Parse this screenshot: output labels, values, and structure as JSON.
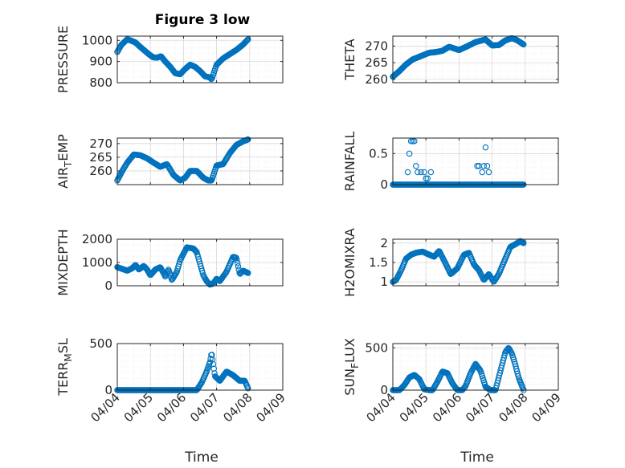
{
  "colors": {
    "marker": "#0072BD",
    "axis": "#262626",
    "grid": "#d9d9d9",
    "minor_grid": "#ececec"
  },
  "chart_data": [
    {
      "type": "scatter",
      "id": "pressure",
      "title": "Figure 3 low",
      "ylabel": "PRESSURE",
      "xlabel": "",
      "xlim": [
        0,
        5
      ],
      "ylim": [
        800,
        1020
      ],
      "yticks": [
        800,
        900,
        1000
      ],
      "ytick_labels": [
        "800",
        "900",
        "1000"
      ],
      "xticks": [
        0,
        1,
        2,
        3,
        4,
        5
      ],
      "xtick_labels": [],
      "grid": true,
      "x_range": [
        0,
        3.95
      ],
      "keys_t": [
        0,
        0.12,
        0.3,
        0.4,
        0.55,
        0.65,
        0.8,
        0.95,
        1.08,
        1.2,
        1.32,
        1.45,
        1.6,
        1.75,
        1.9,
        2.05,
        2.2,
        2.35,
        2.5,
        2.65,
        2.8,
        2.85,
        3.0,
        3.2,
        3.4,
        3.6,
        3.8,
        3.95
      ],
      "keys_v": [
        945,
        978,
        1005,
        1000,
        990,
        975,
        955,
        935,
        920,
        918,
        925,
        900,
        875,
        845,
        840,
        865,
        885,
        875,
        855,
        830,
        825,
        815,
        885,
        915,
        935,
        955,
        980,
        1005
      ]
    },
    {
      "type": "scatter",
      "id": "theta",
      "ylabel": "THETA",
      "xlabel": "",
      "xlim": [
        0,
        5
      ],
      "ylim": [
        259,
        273
      ],
      "yticks": [
        260,
        265,
        270
      ],
      "ytick_labels": [
        "260",
        "265",
        "270"
      ],
      "xticks": [
        0,
        1,
        2,
        3,
        4,
        5
      ],
      "xtick_labels": [],
      "grid": true,
      "x_range": [
        0,
        3.95
      ],
      "keys_t": [
        0,
        0.2,
        0.4,
        0.6,
        0.9,
        1.1,
        1.3,
        1.5,
        1.7,
        2.0,
        2.3,
        2.5,
        2.8,
        3.0,
        3.2,
        3.4,
        3.6,
        3.75,
        3.95
      ],
      "keys_v": [
        260.8,
        262.5,
        264.5,
        266,
        267.2,
        268,
        268.2,
        268.6,
        269.8,
        268.8,
        270.2,
        271.2,
        272,
        270.2,
        270.3,
        271.7,
        272.4,
        271.8,
        270.5
      ]
    },
    {
      "type": "scatter",
      "id": "air_temp",
      "ylabel": "AIR_TEMP",
      "xlabel": "",
      "xlim": [
        0,
        5
      ],
      "ylim": [
        255,
        272
      ],
      "yticks": [
        260,
        265,
        270
      ],
      "ytick_labels": [
        "260",
        "265",
        "270"
      ],
      "xticks": [
        0,
        1,
        2,
        3,
        4,
        5
      ],
      "xtick_labels": [],
      "grid": true,
      "x_range": [
        0,
        3.95
      ],
      "keys_t": [
        0,
        0.15,
        0.3,
        0.5,
        0.7,
        0.9,
        1.1,
        1.3,
        1.5,
        1.7,
        1.9,
        2.05,
        2.2,
        2.4,
        2.6,
        2.75,
        2.85,
        3.0,
        3.2,
        3.4,
        3.6,
        3.8,
        3.95
      ],
      "keys_v": [
        256.5,
        260,
        263,
        266,
        265.7,
        264.6,
        263,
        261.5,
        262.5,
        258.5,
        256.5,
        257.5,
        260,
        260,
        257.5,
        256.5,
        256.5,
        262,
        262.5,
        266.5,
        269.5,
        270.8,
        271.5
      ]
    },
    {
      "type": "scatter",
      "id": "rainfall",
      "ylabel": "RAINFALL",
      "xlabel": "",
      "xlim": [
        0,
        5
      ],
      "ylim": [
        0,
        0.75
      ],
      "yticks": [
        0,
        0.5
      ],
      "ytick_labels": [
        "0",
        "0.5"
      ],
      "xticks": [
        0,
        1,
        2,
        3,
        4,
        5
      ],
      "xtick_labels": [],
      "grid": true,
      "x_range": [
        0,
        3.95
      ],
      "keys_t": [
        0,
        3.95
      ],
      "keys_v": [
        0,
        0
      ],
      "extra_points": [
        {
          "x": 0.45,
          "y": 0.2
        },
        {
          "x": 0.5,
          "y": 0.5
        },
        {
          "x": 0.55,
          "y": 0.7
        },
        {
          "x": 0.6,
          "y": 0.7
        },
        {
          "x": 0.65,
          "y": 0.7
        },
        {
          "x": 0.7,
          "y": 0.3
        },
        {
          "x": 0.75,
          "y": 0.2
        },
        {
          "x": 0.85,
          "y": 0.2
        },
        {
          "x": 0.95,
          "y": 0.2
        },
        {
          "x": 1.0,
          "y": 0.1
        },
        {
          "x": 1.05,
          "y": 0.1
        },
        {
          "x": 1.15,
          "y": 0.2
        },
        {
          "x": 2.55,
          "y": 0.3
        },
        {
          "x": 2.6,
          "y": 0.3
        },
        {
          "x": 2.7,
          "y": 0.2
        },
        {
          "x": 2.75,
          "y": 0.3
        },
        {
          "x": 2.8,
          "y": 0.6
        },
        {
          "x": 2.85,
          "y": 0.3
        },
        {
          "x": 2.9,
          "y": 0.2
        }
      ]
    },
    {
      "type": "scatter",
      "id": "mixdepth",
      "ylabel": "MIXDEPTH",
      "xlabel": "",
      "xlim": [
        0,
        5
      ],
      "ylim": [
        0,
        2000
      ],
      "yticks": [
        0,
        1000,
        2000
      ],
      "ytick_labels": [
        "0",
        "1000",
        "2000"
      ],
      "xticks": [
        0,
        1,
        2,
        3,
        4,
        5
      ],
      "xtick_labels": [],
      "grid": true,
      "x_range": [
        0,
        3.95
      ],
      "keys_t": [
        0,
        0.3,
        0.45,
        0.55,
        0.65,
        0.8,
        0.9,
        1.0,
        1.15,
        1.3,
        1.45,
        1.55,
        1.65,
        1.8,
        1.9,
        2.1,
        2.3,
        2.4,
        2.6,
        2.7,
        2.8,
        2.9,
        3.0,
        3.1,
        3.3,
        3.5,
        3.6,
        3.7,
        3.8,
        3.95
      ],
      "keys_v": [
        800,
        650,
        750,
        900,
        700,
        850,
        700,
        450,
        700,
        800,
        400,
        700,
        250,
        600,
        1100,
        1650,
        1600,
        1450,
        450,
        200,
        50,
        100,
        300,
        200,
        600,
        1250,
        1200,
        500,
        650,
        550
      ]
    },
    {
      "type": "scatter",
      "id": "h2omixra",
      "ylabel": "H2OMIXRA",
      "xlabel": "",
      "xlim": [
        0,
        5
      ],
      "ylim": [
        0.9,
        2.1
      ],
      "yticks": [
        1,
        1.5,
        2
      ],
      "ytick_labels": [
        "1",
        "1.5",
        "2"
      ],
      "xticks": [
        0,
        1,
        2,
        3,
        4,
        5
      ],
      "xtick_labels": [],
      "grid": true,
      "x_range": [
        0,
        3.95
      ],
      "keys_t": [
        0,
        0.1,
        0.25,
        0.4,
        0.55,
        0.7,
        0.9,
        1.1,
        1.25,
        1.4,
        1.55,
        1.75,
        1.95,
        2.15,
        2.3,
        2.45,
        2.6,
        2.75,
        2.9,
        3.05,
        3.2,
        3.4,
        3.55,
        3.7,
        3.85,
        3.95
      ],
      "keys_v": [
        1.0,
        1.05,
        1.3,
        1.6,
        1.7,
        1.75,
        1.78,
        1.7,
        1.65,
        1.8,
        1.55,
        1.2,
        1.35,
        1.7,
        1.75,
        1.45,
        1.3,
        1.05,
        1.2,
        1.0,
        1.2,
        1.6,
        1.9,
        1.97,
        2.05,
        2.0
      ]
    },
    {
      "type": "scatter",
      "id": "terr_msl",
      "ylabel": "TERR_MSL",
      "xlabel": "Time",
      "xlim": [
        0,
        5
      ],
      "ylim": [
        0,
        500
      ],
      "yticks": [
        0,
        500
      ],
      "ytick_labels": [
        "0",
        "500"
      ],
      "xticks": [
        0,
        1,
        2,
        3,
        4,
        5
      ],
      "xtick_labels": [
        "04/04",
        "04/05",
        "04/06",
        "04/07",
        "04/08",
        "04/09"
      ],
      "grid": true,
      "x_range": [
        0,
        3.95
      ],
      "keys_t": [
        0,
        2.4,
        2.55,
        2.7,
        2.8,
        2.85,
        2.95,
        3.1,
        3.3,
        3.5,
        3.7,
        3.85,
        3.95
      ],
      "keys_v": [
        0,
        0,
        80,
        200,
        300,
        400,
        150,
        100,
        200,
        160,
        100,
        100,
        20
      ]
    },
    {
      "type": "scatter",
      "id": "sun_flux",
      "ylabel": "SUN_FLUX",
      "xlabel": "Time",
      "xlim": [
        0,
        5
      ],
      "ylim": [
        0,
        550
      ],
      "yticks": [
        0,
        500
      ],
      "ytick_labels": [
        "0",
        "500"
      ],
      "xticks": [
        0,
        1,
        2,
        3,
        4,
        5
      ],
      "xtick_labels": [
        "04/04",
        "04/05",
        "04/06",
        "04/07",
        "04/08",
        "04/09"
      ],
      "grid": true,
      "x_range": [
        0,
        3.95
      ],
      "keys_t": [
        0,
        0.2,
        0.35,
        0.5,
        0.65,
        0.8,
        0.95,
        1.1,
        1.2,
        1.35,
        1.5,
        1.65,
        1.8,
        1.95,
        2.1,
        2.2,
        2.35,
        2.5,
        2.65,
        2.8,
        2.95,
        3.1,
        3.2,
        3.3,
        3.4,
        3.5,
        3.6,
        3.7,
        3.8,
        3.95
      ],
      "keys_v": [
        0,
        0,
        60,
        150,
        180,
        130,
        10,
        0,
        0,
        100,
        220,
        200,
        80,
        0,
        0,
        50,
        200,
        310,
        230,
        40,
        0,
        0,
        150,
        300,
        450,
        500,
        430,
        300,
        150,
        0
      ]
    }
  ]
}
